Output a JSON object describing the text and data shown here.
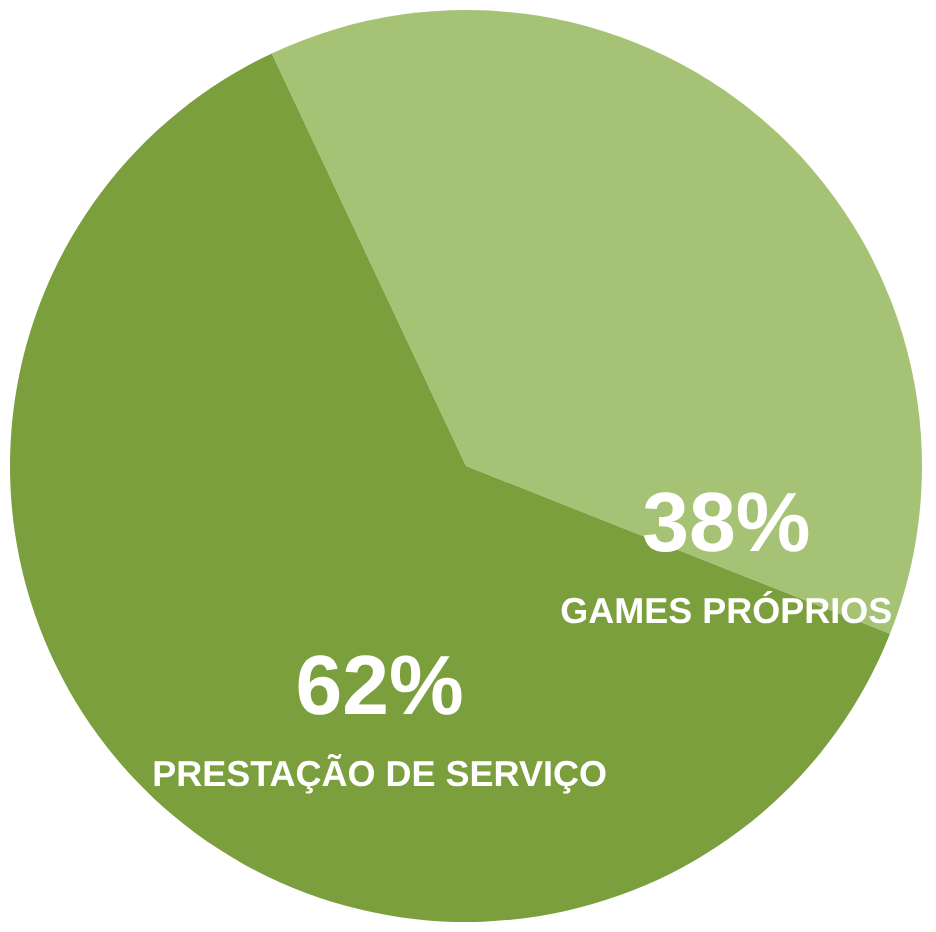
{
  "chart_data": {
    "type": "pie",
    "categories": [
      "GAMES PRÓPRIOS",
      "PRESTAÇÃO DE SERVIÇO"
    ],
    "values": [
      38,
      62
    ],
    "colors": [
      "#a6c275",
      "#7b9f3d"
    ],
    "value_labels": [
      "38%",
      "62%"
    ]
  }
}
